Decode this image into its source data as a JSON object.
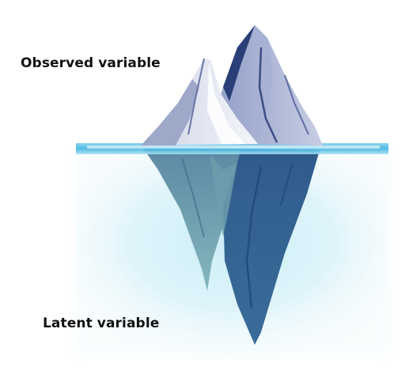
{
  "labels": {
    "observed": "Observed variable",
    "latent": "Latent variable"
  },
  "colors": {
    "water_light": "#e9f8fc",
    "water_mid": "#9fdcee",
    "water_surface": "#3fb3e0",
    "ice_shadow_dark": "#243a72",
    "ice_mid": "#8f9cc4",
    "ice_light": "#e7eaf4",
    "underwater_dark": "#2f5b8c",
    "underwater_teal": "#5e9aa6"
  },
  "icons": {
    "iceberg": "iceberg-illustration"
  }
}
